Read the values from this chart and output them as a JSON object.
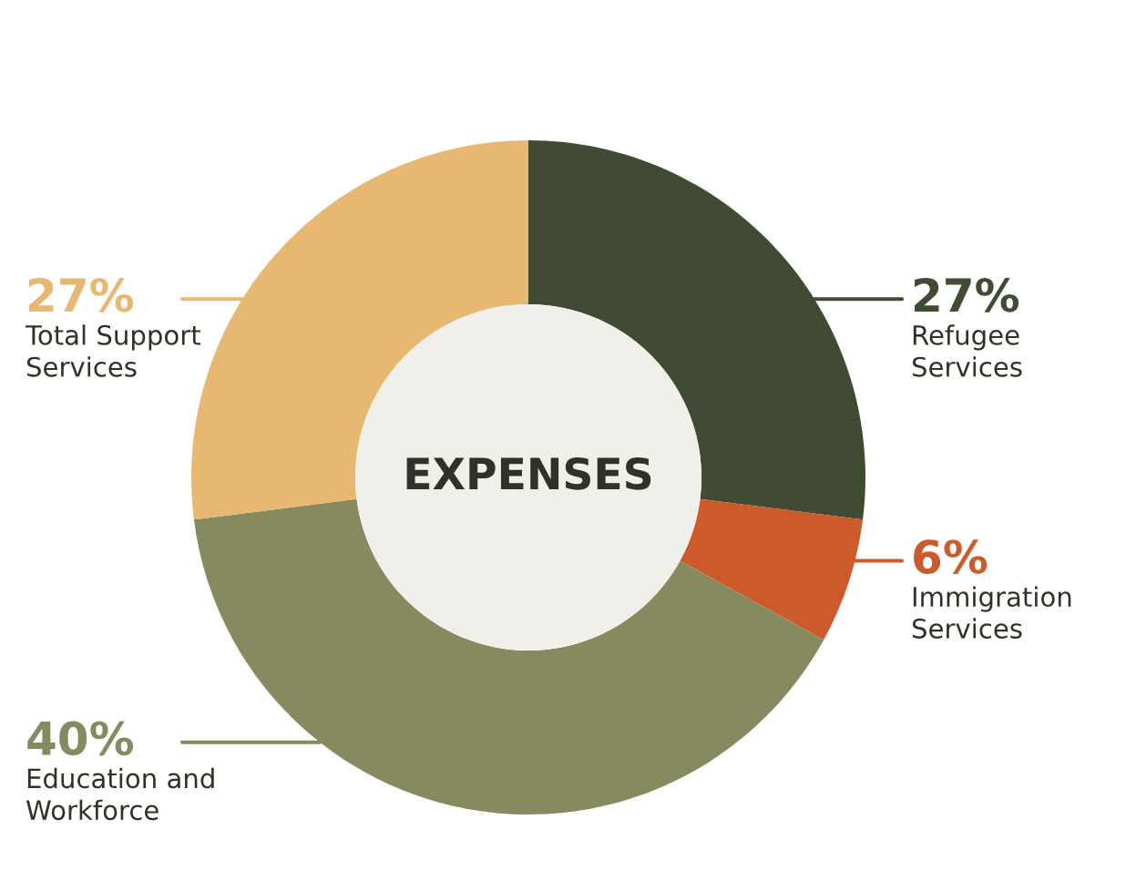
{
  "chart_data": {
    "type": "donut",
    "title": "EXPENSES",
    "categories": [
      "Refugee Services",
      "Immigration Services",
      "Education and Workforce",
      "Total Support Services"
    ],
    "values": [
      27,
      6,
      40,
      27
    ],
    "value_labels": [
      "27%",
      "6%",
      "40%",
      "27%"
    ],
    "colors": [
      "#414a33",
      "#cc5a2a",
      "#868a5e",
      "#e6b872"
    ]
  }
}
